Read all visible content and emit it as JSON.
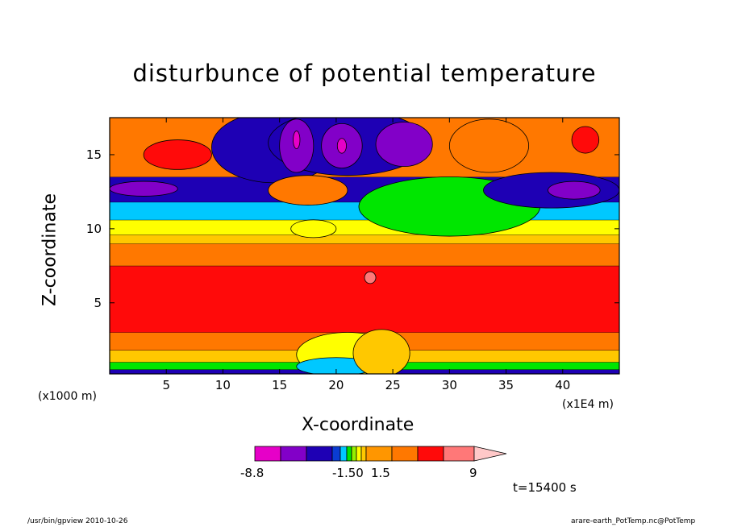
{
  "chart_data": {
    "type": "heatmap",
    "title": "disturbunce of potential temperature",
    "xlabel": "X-coordinate",
    "ylabel": "Z-coordinate",
    "x_unit_label": "(x1000 m)",
    "x_scale_label": "(x1E4 m)",
    "x_ticks": [
      5,
      10,
      15,
      20,
      25,
      30,
      35,
      40
    ],
    "y_ticks": [
      5,
      10,
      15
    ],
    "xlim": [
      0,
      45
    ],
    "ylim": [
      0.2,
      17.5
    ],
    "colorbar": {
      "labels": [
        "-8.8",
        "-1.50",
        "1.5",
        "9"
      ],
      "colors": [
        "#e600c8",
        "#8200c8",
        "#1e00b4",
        "#0a3cd2",
        "#00c8ff",
        "#00e600",
        "#96f000",
        "#ffff00",
        "#ffc800",
        "#ff9600",
        "#ff7800",
        "#ff0a0a",
        "#ff7878",
        "#ffc8c8"
      ]
    },
    "bands": [
      {
        "z0": 0.2,
        "z1": 0.5,
        "color": "#1e00b4"
      },
      {
        "z0": 0.5,
        "z1": 1.0,
        "color": "#00e600"
      },
      {
        "z0": 1.0,
        "z1": 1.8,
        "color": "#ffc800"
      },
      {
        "z0": 1.8,
        "z1": 3.0,
        "color": "#ff7800"
      },
      {
        "z0": 3.0,
        "z1": 7.5,
        "color": "#ff0a0a"
      },
      {
        "z0": 7.5,
        "z1": 9.0,
        "color": "#ff7800"
      },
      {
        "z0": 9.0,
        "z1": 9.6,
        "color": "#ffc800"
      },
      {
        "z0": 9.6,
        "z1": 10.6,
        "color": "#ffff00"
      },
      {
        "z0": 10.6,
        "z1": 11.8,
        "color": "#00c8ff"
      },
      {
        "z0": 11.8,
        "z1": 13.5,
        "color": "#1e00b4"
      },
      {
        "z0": 13.5,
        "z1": 17.5,
        "color": "#ff7800"
      }
    ],
    "blobs": [
      {
        "x": 14.5,
        "z": 15.5,
        "rx": 5.5,
        "rz": 2.4,
        "color": "#1e00b4"
      },
      {
        "x": 21,
        "z": 15.8,
        "rx": 7,
        "rz": 2.2,
        "color": "#1e00b4"
      },
      {
        "x": 26,
        "z": 15.7,
        "rx": 2.5,
        "rz": 1.5,
        "color": "#8200c8"
      },
      {
        "x": 20.5,
        "z": 15.6,
        "rx": 1.8,
        "rz": 1.5,
        "color": "#8200c8"
      },
      {
        "x": 16.5,
        "z": 15.6,
        "rx": 1.5,
        "rz": 1.8,
        "color": "#8200c8"
      },
      {
        "x": 20.5,
        "z": 15.6,
        "rx": 0.4,
        "rz": 0.5,
        "color": "#e600c8"
      },
      {
        "x": 16.5,
        "z": 16.0,
        "rx": 0.3,
        "rz": 0.6,
        "color": "#e600c8"
      },
      {
        "x": 6,
        "z": 15.0,
        "rx": 3,
        "rz": 1.0,
        "color": "#ff0a0a"
      },
      {
        "x": 42,
        "z": 16.0,
        "rx": 1.2,
        "rz": 0.9,
        "color": "#ff0a0a"
      },
      {
        "x": 33.5,
        "z": 15.6,
        "rx": 3.5,
        "rz": 1.8,
        "color": "#ff7800"
      },
      {
        "x": 30,
        "z": 11.5,
        "rx": 8,
        "rz": 2.0,
        "color": "#00e600"
      },
      {
        "x": 39,
        "z": 12.6,
        "rx": 6,
        "rz": 1.2,
        "color": "#1e00b4"
      },
      {
        "x": 41,
        "z": 12.6,
        "rx": 2.3,
        "rz": 0.6,
        "color": "#8200c8"
      },
      {
        "x": 3,
        "z": 12.7,
        "rx": 3,
        "rz": 0.5,
        "color": "#8200c8"
      },
      {
        "x": 17.5,
        "z": 12.6,
        "rx": 3.5,
        "rz": 1.0,
        "color": "#ff7800"
      },
      {
        "x": 18,
        "z": 10.0,
        "rx": 2,
        "rz": 0.6,
        "color": "#ffff00"
      },
      {
        "x": 23,
        "z": 6.7,
        "rx": 0.5,
        "rz": 0.4,
        "color": "#ff7878"
      },
      {
        "x": 21,
        "z": 1.5,
        "rx": 4.5,
        "rz": 1.5,
        "color": "#ffff00"
      },
      {
        "x": 20,
        "z": 0.7,
        "rx": 3.5,
        "rz": 0.6,
        "color": "#00c8ff"
      },
      {
        "x": 24,
        "z": 1.6,
        "rx": 2.5,
        "rz": 1.6,
        "color": "#ffc800"
      }
    ]
  },
  "annotations": {
    "time": "t=15400 s",
    "footer_left": "/usr/bin/gpview  2010-10-26",
    "footer_right": "arare-earth_PotTemp.nc@PotTemp"
  }
}
